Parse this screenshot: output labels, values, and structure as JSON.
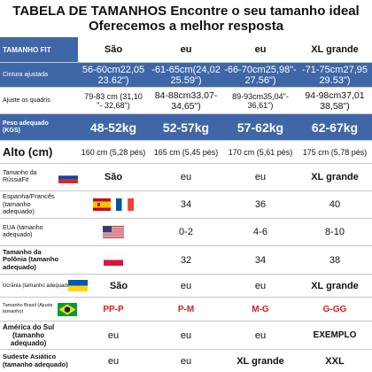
{
  "title_line1": "TABELA DE TAMANHOS Encontre o seu tamanho ideal",
  "title_line2": "Oferecemos a melhor resposta",
  "header": {
    "label": "TAMANHO FIT",
    "cols": [
      "São",
      "eu",
      "eu",
      "XL grande"
    ]
  },
  "cintura": {
    "label": "Cintura ajustada",
    "cols": [
      "56-60cm22,05\n23.62\")",
      "-61-65cm(24,02\n25.59\")",
      "-66-70cm25,98\"-\n27.56\")",
      "-71-75cm27,95\n29.53\")"
    ]
  },
  "quadris": {
    "label": "Ajuste os quadris",
    "cols": [
      "79-83 cm (31,10\n\"- 32,68\")",
      "84-88cm33,07-\n34,65\")",
      "89-93cm35,04\"-\n36,61\")",
      "94-98cm37,01\n38,58\")"
    ]
  },
  "peso": {
    "label": "Peso adequado\n(KGS)",
    "cols": [
      "48-52kg",
      "52-57kg",
      "57-62kg",
      "62-67kg"
    ]
  },
  "alto": {
    "label": "Alto (cm)",
    "cols": [
      "160 cm (5,28 pés)",
      "165 cm (5,45 pés)",
      "170 cm (5,61 pés)",
      "175 cm (5,78 pés)"
    ]
  },
  "russia": {
    "label": "Tamanho da RússiaFit",
    "cols": [
      "São",
      "eu",
      "eu",
      "XL grande"
    ]
  },
  "espanha": {
    "label": "Espanha/Francês\n(tamanho\nadequado)",
    "cols": [
      "",
      "34",
      "36",
      "40"
    ]
  },
  "eua": {
    "label": "EUA (tamanho\nadequado)",
    "cols": [
      "",
      "0-2",
      "4-6",
      "8-10"
    ]
  },
  "polonia": {
    "label": "Tamanho da\nPolônia (tamanho\nadequado)",
    "cols": [
      "",
      "32",
      "34",
      "38"
    ]
  },
  "ucrania": {
    "label": "Ucrânia (tamanho adequado)",
    "cols": [
      "São",
      "eu",
      "eu",
      "XL grande"
    ]
  },
  "brasil": {
    "label": "Tamanho Brasil (Ajuste\ntamanho)",
    "cols": [
      "PP-P",
      "P-M",
      "M-G",
      "G-GG"
    ]
  },
  "america": {
    "label": "América do Sul\n(tamanho\nadequado)",
    "cols": [
      "eu",
      "eu",
      "eu",
      "EXEMPLO"
    ]
  },
  "asia": {
    "label": "Sudeste Asiático\n(tamanho adequado)",
    "cols": [
      "eu",
      "eu",
      "XL grande",
      "XXL"
    ]
  },
  "colors": {
    "header_blue": "#3f67a7",
    "brazil_red": "#d21f1f"
  }
}
